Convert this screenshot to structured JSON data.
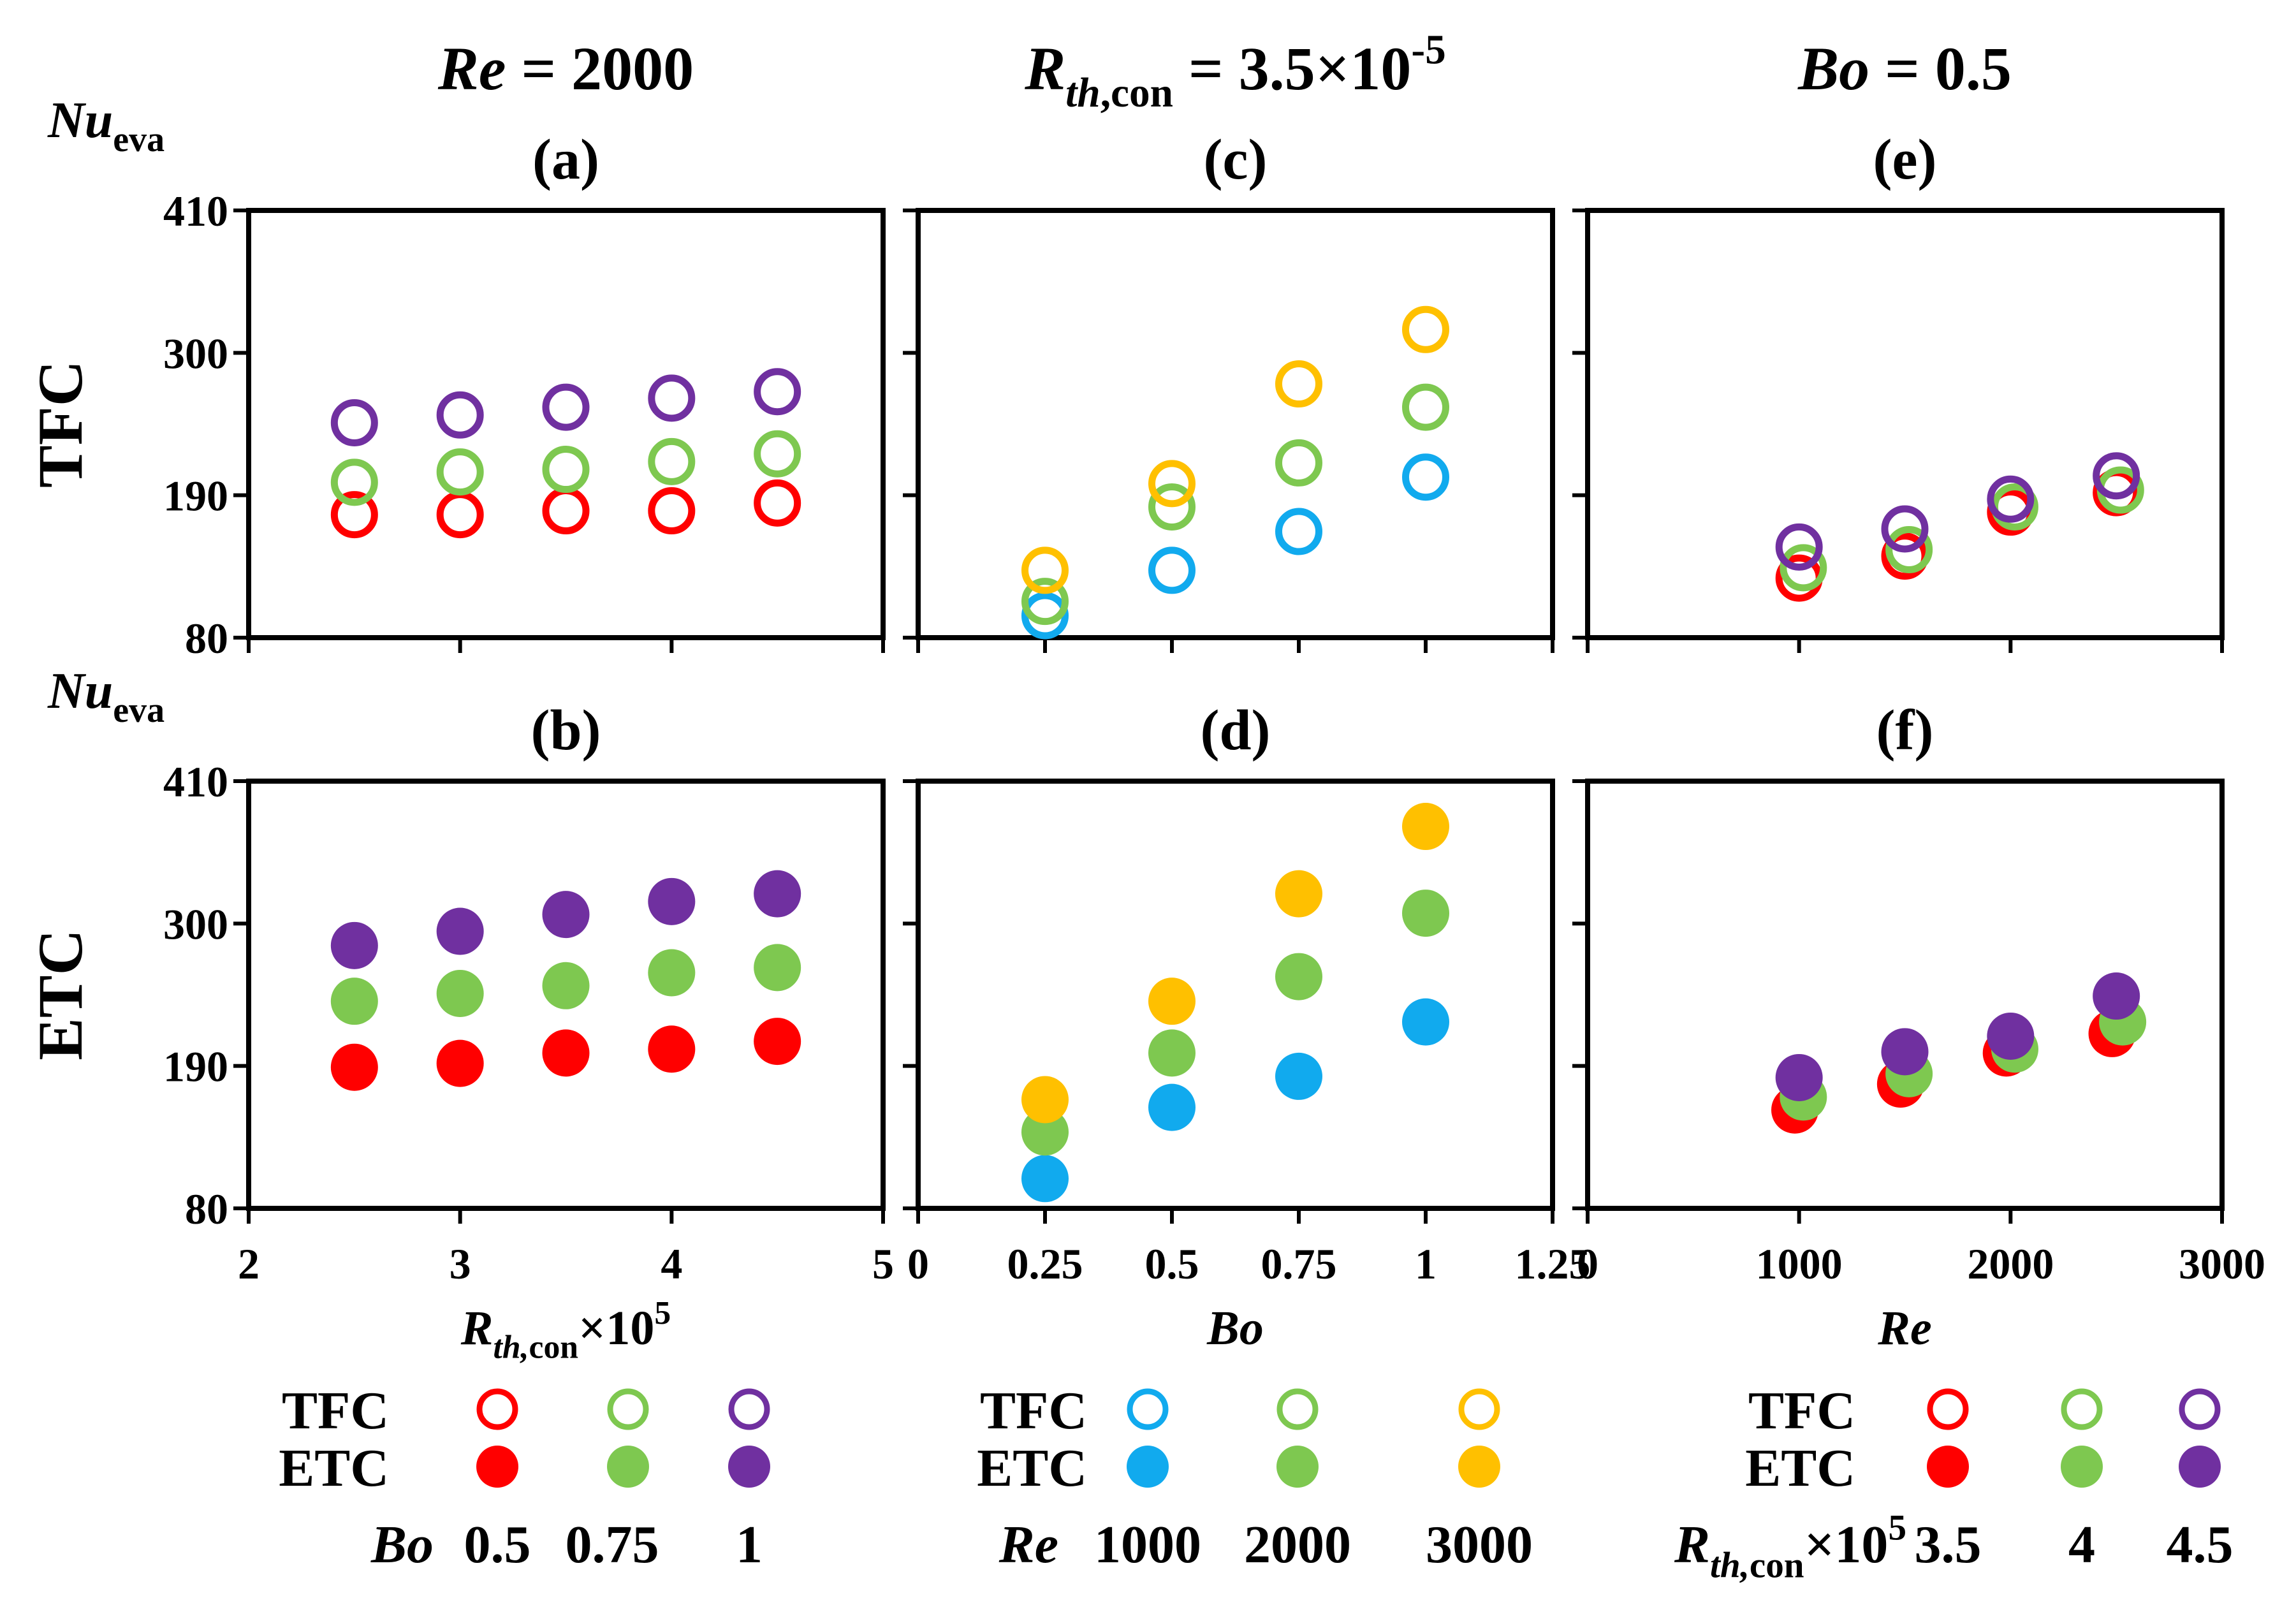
{
  "figure": {
    "row_labels": [
      "TFC",
      "ETC"
    ],
    "yaxis_label": {
      "main": "Nu",
      "sub": "eva"
    },
    "column_titles": [
      {
        "parts": [
          {
            "t": "Re",
            "s": "i"
          },
          {
            "t": " = 2000",
            "s": "n"
          }
        ]
      },
      {
        "parts": [
          {
            "t": "R",
            "s": "i"
          },
          {
            "t": "th",
            "s": "isub"
          },
          {
            "t": ",con",
            "s": "sub"
          },
          {
            "t": " = 3.5×10",
            "s": "n"
          },
          {
            "t": "-5",
            "s": "sup"
          }
        ]
      },
      {
        "parts": [
          {
            "t": "Bo",
            "s": "i"
          },
          {
            "t": " = 0.5",
            "s": "n"
          }
        ]
      }
    ],
    "xlabels": [
      {
        "parts": [
          {
            "t": "R",
            "s": "i"
          },
          {
            "t": "th,",
            "s": "isub"
          },
          {
            "t": "con",
            "s": "sub"
          },
          {
            "t": "×10",
            "s": "n"
          },
          {
            "t": "5",
            "s": "sup"
          }
        ]
      },
      {
        "parts": [
          {
            "t": "Bo",
            "s": "i"
          }
        ]
      },
      {
        "parts": [
          {
            "t": "Re",
            "s": "i"
          }
        ]
      }
    ],
    "legends": [
      {
        "row1": "TFC",
        "row2": "ETC",
        "var_parts": [
          {
            "t": "Bo",
            "s": "i"
          }
        ],
        "entries": [
          {
            "label": "0.5",
            "color": "#ff0000"
          },
          {
            "label": "0.75",
            "color": "#7ec850"
          },
          {
            "label": "1",
            "color": "#7030a0"
          }
        ]
      },
      {
        "row1": "TFC",
        "row2": "ETC",
        "var_parts": [
          {
            "t": "Re",
            "s": "i"
          }
        ],
        "entries": [
          {
            "label": "1000",
            "color": "#11aaee"
          },
          {
            "label": "2000",
            "color": "#7ec850"
          },
          {
            "label": "3000",
            "color": "#ffc000"
          }
        ]
      },
      {
        "row1": "TFC",
        "row2": "ETC",
        "var_parts": [
          {
            "t": "R",
            "s": "i"
          },
          {
            "t": "th,",
            "s": "isub"
          },
          {
            "t": "con",
            "s": "sub"
          },
          {
            "t": "×10",
            "s": "n"
          },
          {
            "t": "5",
            "s": "sup"
          }
        ],
        "entries": [
          {
            "label": "3.5",
            "color": "#ff0000"
          },
          {
            "label": "4",
            "color": "#7ec850"
          },
          {
            "label": "4.5",
            "color": "#7030a0"
          }
        ]
      }
    ]
  },
  "chart_data": [
    {
      "id": "a",
      "type": "scatter",
      "title": "(a)",
      "group": "TFC",
      "marker": "open",
      "xlim": [
        2,
        5
      ],
      "ylim": [
        80,
        410
      ],
      "yticks": [
        80,
        190,
        300,
        410
      ],
      "xticks": [
        2,
        3,
        4,
        5
      ],
      "series": [
        {
          "name": "Bo 0.5",
          "color": "#ff0000",
          "x": [
            2.5,
            3,
            3.5,
            4,
            4.5
          ],
          "y": [
            175,
            175,
            178,
            178,
            184
          ]
        },
        {
          "name": "Bo 0.75",
          "color": "#7ec850",
          "x": [
            2.5,
            3,
            3.5,
            4,
            4.5
          ],
          "y": [
            200,
            208,
            210,
            216,
            222
          ]
        },
        {
          "name": "Bo 1",
          "color": "#7030a0",
          "x": [
            2.5,
            3,
            3.5,
            4,
            4.5
          ],
          "y": [
            246,
            252,
            258,
            265,
            270
          ]
        }
      ]
    },
    {
      "id": "b",
      "type": "scatter",
      "title": "(b)",
      "group": "ETC",
      "marker": "filled",
      "xlim": [
        2,
        5
      ],
      "ylim": [
        80,
        410
      ],
      "yticks": [
        80,
        190,
        300,
        410
      ],
      "xticks": [
        2,
        3,
        4,
        5
      ],
      "xticklabels": [
        "2",
        "3",
        "4",
        "5"
      ],
      "series": [
        {
          "name": "Bo 0.5",
          "color": "#ff0000",
          "x": [
            2.5,
            3,
            3.5,
            4,
            4.5
          ],
          "y": [
            189,
            192,
            200,
            203,
            209
          ]
        },
        {
          "name": "Bo 0.75",
          "color": "#7ec850",
          "x": [
            2.5,
            3,
            3.5,
            4,
            4.5
          ],
          "y": [
            240,
            246,
            252,
            262,
            266
          ]
        },
        {
          "name": "Bo 1",
          "color": "#7030a0",
          "x": [
            2.5,
            3,
            3.5,
            4,
            4.5
          ],
          "y": [
            283,
            294,
            307,
            317,
            323
          ]
        }
      ]
    },
    {
      "id": "c",
      "type": "scatter",
      "title": "(c)",
      "group": "TFC",
      "marker": "open",
      "xlim": [
        0,
        1.25
      ],
      "ylim": [
        80,
        410
      ],
      "xticks": [
        0,
        0.25,
        0.5,
        0.75,
        1,
        1.25
      ],
      "series": [
        {
          "name": "Re 1000",
          "color": "#11aaee",
          "x": [
            0.25,
            0.5,
            0.75,
            1
          ],
          "y": [
            97,
            132,
            162,
            204
          ]
        },
        {
          "name": "Re 2000",
          "color": "#7ec850",
          "x": [
            0.25,
            0.5,
            0.75,
            1
          ],
          "y": [
            108,
            181,
            215,
            258
          ]
        },
        {
          "name": "Re 3000",
          "color": "#ffc000",
          "x": [
            0.25,
            0.5,
            0.75,
            1
          ],
          "y": [
            132,
            199,
            276,
            318
          ]
        }
      ]
    },
    {
      "id": "d",
      "type": "scatter",
      "title": "(d)",
      "group": "ETC",
      "marker": "filled",
      "xlim": [
        0,
        1.25
      ],
      "ylim": [
        80,
        410
      ],
      "xticks": [
        0,
        0.25,
        0.5,
        0.75,
        1,
        1.25
      ],
      "xticklabels": [
        "0",
        "0.25",
        "0.5",
        "0.75",
        "1",
        "1.25"
      ],
      "series": [
        {
          "name": "Re 1000",
          "color": "#11aaee",
          "x": [
            0.25,
            0.5,
            0.75,
            1
          ],
          "y": [
            103,
            158,
            182,
            224
          ]
        },
        {
          "name": "Re 2000",
          "color": "#7ec850",
          "x": [
            0.25,
            0.5,
            0.75,
            1
          ],
          "y": [
            139,
            200,
            259,
            308
          ]
        },
        {
          "name": "Re 3000",
          "color": "#ffc000",
          "x": [
            0.25,
            0.5,
            0.75,
            1
          ],
          "y": [
            164,
            240,
            323,
            375
          ]
        }
      ]
    },
    {
      "id": "e",
      "type": "scatter",
      "title": "(e)",
      "group": "TFC",
      "marker": "open",
      "xlim": [
        0,
        3000
      ],
      "ylim": [
        80,
        410
      ],
      "xticks": [
        0,
        1000,
        2000,
        3000
      ],
      "series": [
        {
          "name": "Rth 3.5",
          "color": "#ff0000",
          "x": [
            1000,
            1500,
            2000,
            2500
          ],
          "y": [
            126,
            143,
            177,
            192
          ]
        },
        {
          "name": "Rth 4",
          "color": "#7ec850",
          "x": [
            1020,
            1520,
            2020,
            2520
          ],
          "y": [
            134,
            148,
            181,
            194
          ]
        },
        {
          "name": "Rth 4.5",
          "color": "#7030a0",
          "x": [
            1000,
            1500,
            2000,
            2500
          ],
          "y": [
            150,
            164,
            187,
            205
          ]
        }
      ]
    },
    {
      "id": "f",
      "type": "scatter",
      "title": "(f)",
      "group": "ETC",
      "marker": "filled",
      "xlim": [
        0,
        3000
      ],
      "ylim": [
        80,
        410
      ],
      "xticks": [
        0,
        1000,
        2000,
        3000
      ],
      "xticklabels": [
        "0",
        "1000",
        "2000",
        "3000"
      ],
      "series": [
        {
          "name": "Rth 3.5",
          "color": "#ff0000",
          "x": [
            980,
            1480,
            1980,
            2480
          ],
          "y": [
            156,
            176,
            200,
            215
          ]
        },
        {
          "name": "Rth 4",
          "color": "#7ec850",
          "x": [
            1020,
            1520,
            2020,
            2530
          ],
          "y": [
            166,
            184,
            203,
            224
          ]
        },
        {
          "name": "Rth 4.5",
          "color": "#7030a0",
          "x": [
            1000,
            1500,
            2000,
            2500
          ],
          "y": [
            181,
            201,
            213,
            244
          ]
        }
      ]
    }
  ]
}
